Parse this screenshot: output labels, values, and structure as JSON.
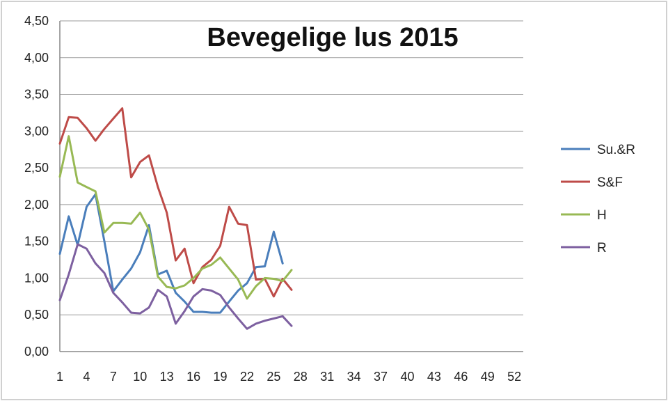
{
  "chart_data": {
    "type": "line",
    "title": "Bevegelige lus 2015",
    "xlabel": "",
    "ylabel": "",
    "x_ticks": [
      "1",
      "4",
      "7",
      "10",
      "13",
      "16",
      "19",
      "22",
      "25",
      "28",
      "31",
      "34",
      "37",
      "40",
      "43",
      "46",
      "49",
      "52"
    ],
    "x_range": [
      1,
      53
    ],
    "y_ticks": [
      "0,00",
      "0,50",
      "1,00",
      "1,50",
      "2,00",
      "2,50",
      "3,00",
      "3,50",
      "4,00",
      "4,50"
    ],
    "ylim": [
      0,
      4.5
    ],
    "grid": "horizontal",
    "legend_position": "right",
    "series": [
      {
        "name": "Su.&R",
        "color": "#4a7ebb",
        "x": [
          1,
          2,
          3,
          4,
          5,
          6,
          7,
          8,
          9,
          10,
          11,
          12,
          13,
          14,
          15,
          16,
          17,
          18,
          19,
          20,
          21,
          22,
          23,
          24,
          25,
          26
        ],
        "values": [
          1.33,
          1.84,
          1.45,
          1.97,
          2.14,
          1.5,
          0.82,
          0.98,
          1.13,
          1.35,
          1.72,
          1.05,
          1.1,
          0.8,
          0.68,
          0.54,
          0.54,
          0.53,
          0.53,
          0.68,
          0.83,
          0.93,
          1.15,
          1.16,
          1.63,
          1.2
        ]
      },
      {
        "name": "S&F",
        "color": "#be4b48",
        "x": [
          1,
          2,
          3,
          4,
          5,
          6,
          7,
          8,
          9,
          10,
          11,
          12,
          13,
          14,
          15,
          16,
          17,
          18,
          19,
          20,
          21,
          22,
          23,
          24,
          25,
          26,
          27
        ],
        "values": [
          2.83,
          3.19,
          3.18,
          3.04,
          2.87,
          3.03,
          3.17,
          3.31,
          2.37,
          2.58,
          2.67,
          2.24,
          1.89,
          1.24,
          1.4,
          0.93,
          1.15,
          1.25,
          1.44,
          1.97,
          1.74,
          1.72,
          0.98,
          0.99,
          0.75,
          0.99,
          0.84
        ]
      },
      {
        "name": "H",
        "color": "#98b954",
        "x": [
          1,
          2,
          3,
          4,
          5,
          6,
          7,
          8,
          9,
          10,
          11,
          12,
          13,
          14,
          15,
          16,
          17,
          18,
          19,
          20,
          21,
          22,
          23,
          24,
          25,
          26,
          27
        ],
        "values": [
          2.38,
          2.93,
          2.3,
          2.24,
          2.18,
          1.62,
          1.75,
          1.75,
          1.74,
          1.89,
          1.66,
          1.02,
          0.88,
          0.86,
          0.9,
          1.0,
          1.13,
          1.18,
          1.28,
          1.13,
          0.98,
          0.72,
          0.89,
          1.0,
          0.99,
          0.96,
          1.11
        ]
      },
      {
        "name": "R",
        "color": "#7d60a0",
        "x": [
          1,
          2,
          3,
          4,
          5,
          6,
          7,
          8,
          9,
          10,
          11,
          12,
          13,
          14,
          15,
          16,
          17,
          18,
          19,
          20,
          21,
          22,
          23,
          24,
          25,
          26,
          27
        ],
        "values": [
          0.7,
          1.05,
          1.46,
          1.4,
          1.2,
          1.07,
          0.8,
          0.67,
          0.53,
          0.52,
          0.6,
          0.84,
          0.75,
          0.38,
          0.55,
          0.75,
          0.85,
          0.83,
          0.77,
          0.6,
          0.45,
          0.31,
          0.38,
          0.42,
          0.45,
          0.48,
          0.35
        ]
      }
    ]
  }
}
